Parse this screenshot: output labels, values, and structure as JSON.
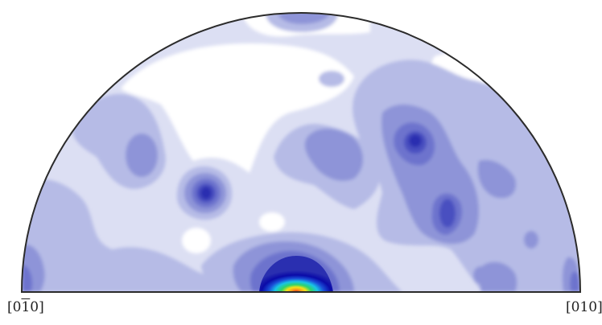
{
  "figure": {
    "type": "pole-figure-upper-hemisphere",
    "colors": {
      "level0": "#ffffff",
      "level1": "#dcdff3",
      "level2": "#b6bbe6",
      "level3": "#8e94d8",
      "level4": "#6d73cd",
      "level5": "#4a50c0",
      "level6": "#2a2fb0",
      "peak_blue": "#0a0aa8",
      "peak_cyan": "#19c4e6",
      "peak_green": "#2fd36a",
      "peak_yellow": "#f2e21a",
      "peak_red": "#ee1b1b",
      "outline": "#2b2b2b"
    }
  },
  "labels": {
    "left": {
      "prefix": "[0",
      "bar": "1",
      "suffix": "0]"
    },
    "right": "[010]"
  }
}
